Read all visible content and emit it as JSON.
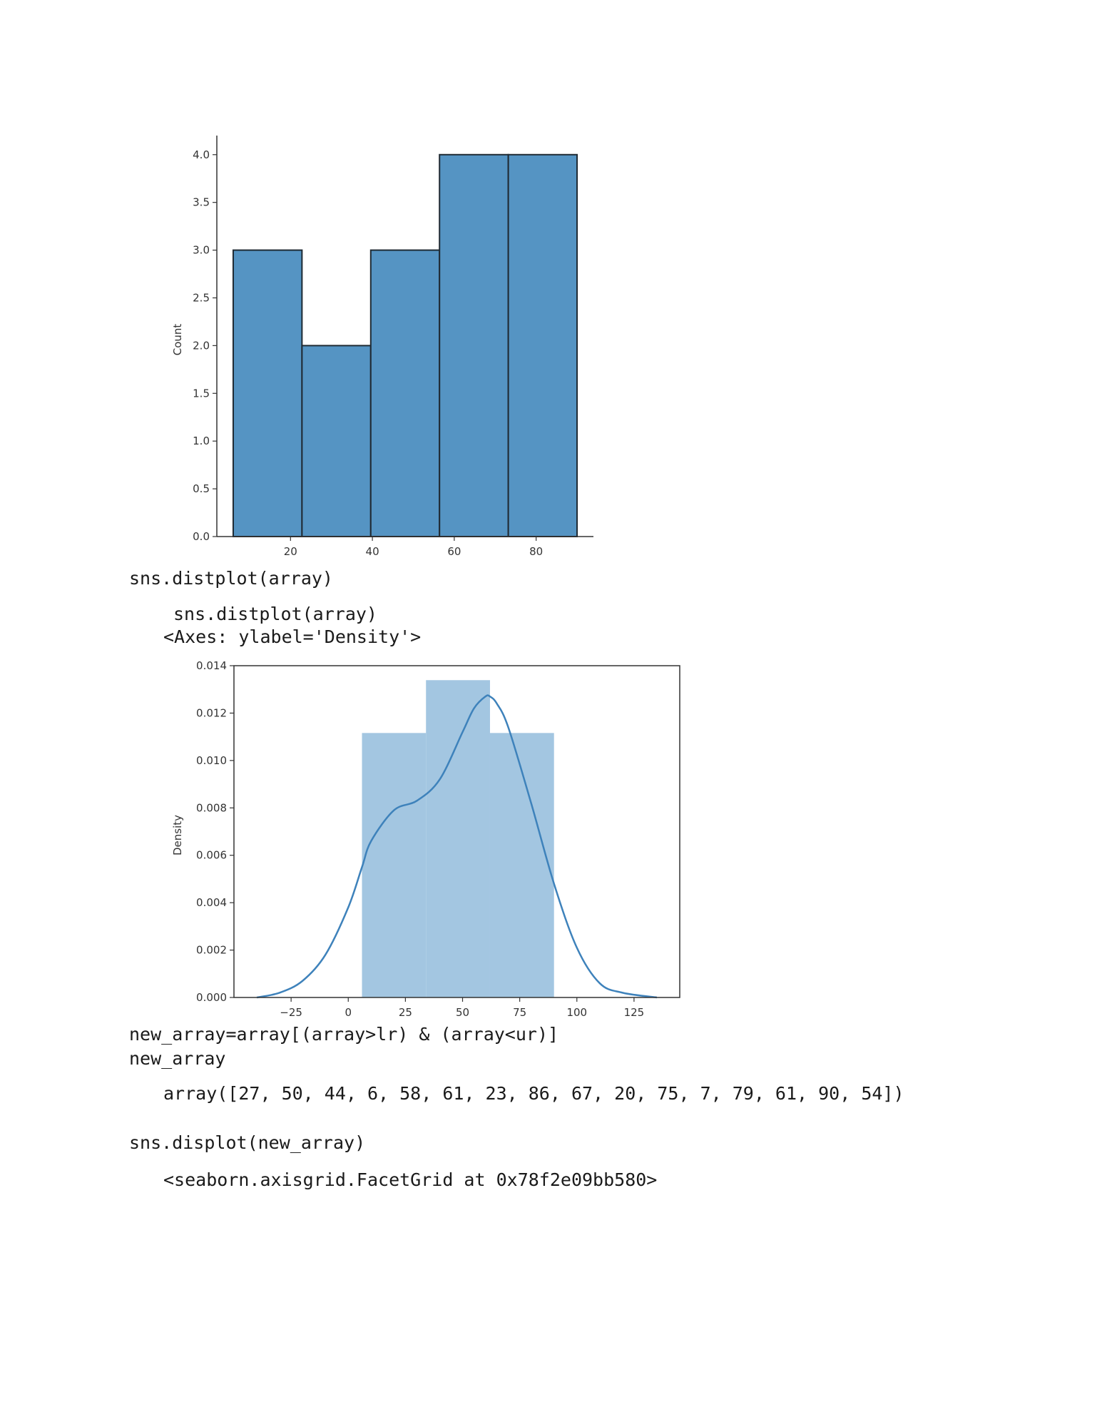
{
  "chart_data": [
    {
      "type": "bar",
      "bins": [
        [
          6,
          22.8
        ],
        [
          22.8,
          39.6
        ],
        [
          39.6,
          56.4
        ],
        [
          56.4,
          73.2
        ],
        [
          73.2,
          90
        ]
      ],
      "values": [
        3,
        2,
        3,
        4,
        4
      ],
      "xticks": [
        20,
        40,
        60,
        80
      ],
      "yticks": [
        "0.0",
        "0.5",
        "1.0",
        "1.5",
        "2.0",
        "2.5",
        "3.0",
        "3.5",
        "4.0"
      ],
      "ylabel": "Count",
      "xlim": [
        2,
        94
      ],
      "ylim": [
        0,
        4.2
      ],
      "color": "#5594c3",
      "grid": false
    },
    {
      "type": "area",
      "bins": [
        [
          6,
          34
        ],
        [
          34,
          62
        ],
        [
          62,
          90
        ]
      ],
      "values": [
        0.01116,
        0.01339,
        0.01116
      ],
      "kde_x": [
        -40,
        -30,
        -20,
        -10,
        0,
        6,
        10,
        20,
        30,
        40,
        50,
        55,
        60,
        62,
        65,
        70,
        80,
        90,
        100,
        110,
        120,
        135
      ],
      "kde_y": [
        0,
        0.0002,
        0.0007,
        0.0018,
        0.0038,
        0.0055,
        0.0066,
        0.0079,
        0.0083,
        0.0092,
        0.0112,
        0.0122,
        0.0127,
        0.0127,
        0.0124,
        0.0114,
        0.0082,
        0.0048,
        0.0021,
        0.0006,
        0.0002,
        0
      ],
      "xticks": [
        "−25",
        "0",
        "25",
        "50",
        "75",
        "100",
        "125"
      ],
      "xtick_values": [
        -25,
        0,
        25,
        50,
        75,
        100,
        125
      ],
      "yticks": [
        "0.000",
        "0.002",
        "0.004",
        "0.006",
        "0.008",
        "0.010",
        "0.012",
        "0.014"
      ],
      "ylabel": "Density",
      "xlim": [
        -50,
        145
      ],
      "ylim": [
        0,
        0.014
      ],
      "bar_color": "#a3c6e1",
      "line_color": "#3e82bb",
      "grid": false
    }
  ],
  "code": {
    "cell1": "sns.distplot(array)",
    "warn1": "sns.distplot(array)",
    "out1": "<Axes: ylabel='Density'>",
    "cell2_line1": "new_array=array[(array>lr) & (array<ur)]",
    "cell2_line2": "new_array",
    "out2": "array([27, 50, 44, 6, 58, 61, 23, 86, 67, 20, 75, 7, 79, 61, 90, 54])",
    "cell3": "sns.displot(new_array)",
    "out3": "<seaborn.axisgrid.FacetGrid at 0x78f2e09bb580>"
  }
}
